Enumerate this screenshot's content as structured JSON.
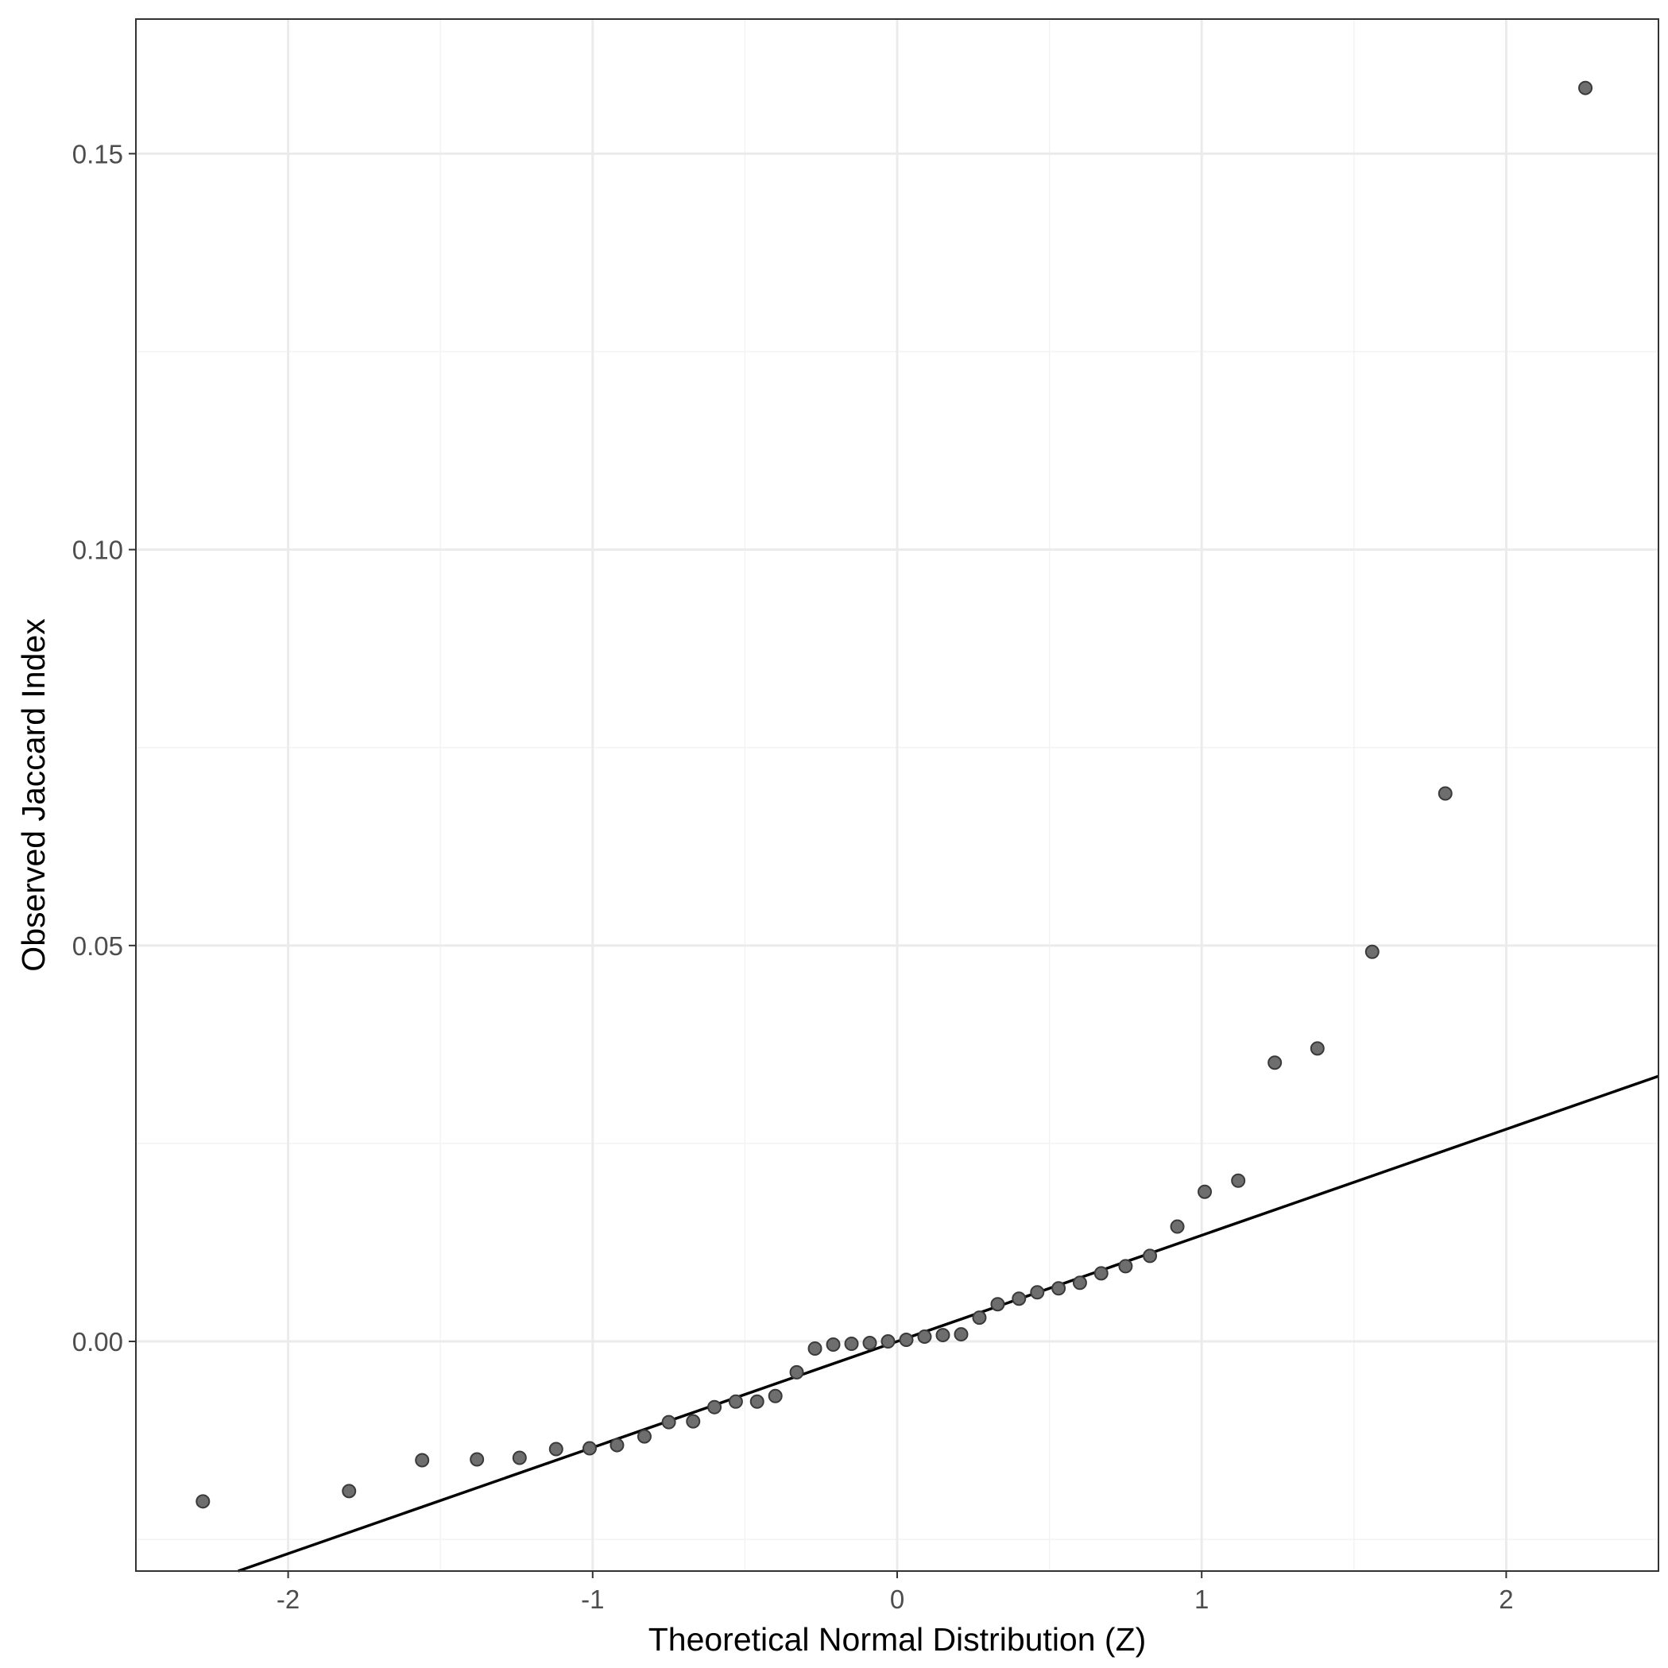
{
  "chart_data": {
    "type": "scatter",
    "title": "",
    "xlabel": "Theoretical Normal Distribution (Z)",
    "ylabel": "Observed Jaccard Index",
    "xlim": [
      -2.5,
      2.5
    ],
    "ylim": [
      -0.029,
      0.167
    ],
    "x_ticks": [
      -2,
      -1,
      0,
      1,
      2
    ],
    "x_tick_labels": [
      "-2",
      "-1",
      "0",
      "1",
      "2"
    ],
    "y_ticks": [
      0.0,
      0.05,
      0.1,
      0.15
    ],
    "y_tick_labels": [
      "0.00",
      "0.05",
      "0.10",
      "0.15"
    ],
    "x_minor_ticks": [
      -1.5,
      -0.5,
      0.5,
      1.5
    ],
    "y_minor_ticks": [
      -0.025,
      0.025,
      0.075,
      0.125
    ],
    "grid": true,
    "legend": "none",
    "colors": {
      "point_fill": "#6e6e6e",
      "point_stroke": "#3a3a3a",
      "line": "#000000",
      "panel_border": "#333333",
      "grid_major": "#ebebeb",
      "grid_minor": "#f3f3f3",
      "axis_text": "#4d4d4d"
    },
    "reference_line": {
      "slope": 0.0134,
      "intercept": 0.0
    },
    "points": [
      {
        "x": -2.28,
        "y": -0.0202
      },
      {
        "x": -1.8,
        "y": -0.0189
      },
      {
        "x": -1.56,
        "y": -0.015
      },
      {
        "x": -1.38,
        "y": -0.0149
      },
      {
        "x": -1.24,
        "y": -0.0147
      },
      {
        "x": -1.12,
        "y": -0.0136
      },
      {
        "x": -1.01,
        "y": -0.0135
      },
      {
        "x": -0.92,
        "y": -0.0131
      },
      {
        "x": -0.83,
        "y": -0.012
      },
      {
        "x": -0.75,
        "y": -0.0102
      },
      {
        "x": -0.67,
        "y": -0.0101
      },
      {
        "x": -0.6,
        "y": -0.0083
      },
      {
        "x": -0.53,
        "y": -0.0076
      },
      {
        "x": -0.46,
        "y": -0.0076
      },
      {
        "x": -0.4,
        "y": -0.0069
      },
      {
        "x": -0.33,
        "y": -0.0039
      },
      {
        "x": -0.27,
        "y": -0.0009
      },
      {
        "x": -0.21,
        "y": -0.0004
      },
      {
        "x": -0.15,
        "y": -0.0003
      },
      {
        "x": -0.09,
        "y": -0.0002
      },
      {
        "x": -0.03,
        "y": 0.0
      },
      {
        "x": 0.03,
        "y": 0.0002
      },
      {
        "x": 0.09,
        "y": 0.0006
      },
      {
        "x": 0.15,
        "y": 0.0008
      },
      {
        "x": 0.21,
        "y": 0.0009
      },
      {
        "x": 0.27,
        "y": 0.003
      },
      {
        "x": 0.33,
        "y": 0.0047
      },
      {
        "x": 0.4,
        "y": 0.0054
      },
      {
        "x": 0.46,
        "y": 0.0062
      },
      {
        "x": 0.53,
        "y": 0.0067
      },
      {
        "x": 0.6,
        "y": 0.0074
      },
      {
        "x": 0.67,
        "y": 0.0086
      },
      {
        "x": 0.75,
        "y": 0.0095
      },
      {
        "x": 0.83,
        "y": 0.0108
      },
      {
        "x": 0.92,
        "y": 0.0145
      },
      {
        "x": 1.01,
        "y": 0.0189
      },
      {
        "x": 1.12,
        "y": 0.0203
      },
      {
        "x": 1.24,
        "y": 0.0352
      },
      {
        "x": 1.38,
        "y": 0.037
      },
      {
        "x": 1.56,
        "y": 0.0492
      },
      {
        "x": 1.8,
        "y": 0.0692
      },
      {
        "x": 2.26,
        "y": 0.1583
      }
    ]
  }
}
